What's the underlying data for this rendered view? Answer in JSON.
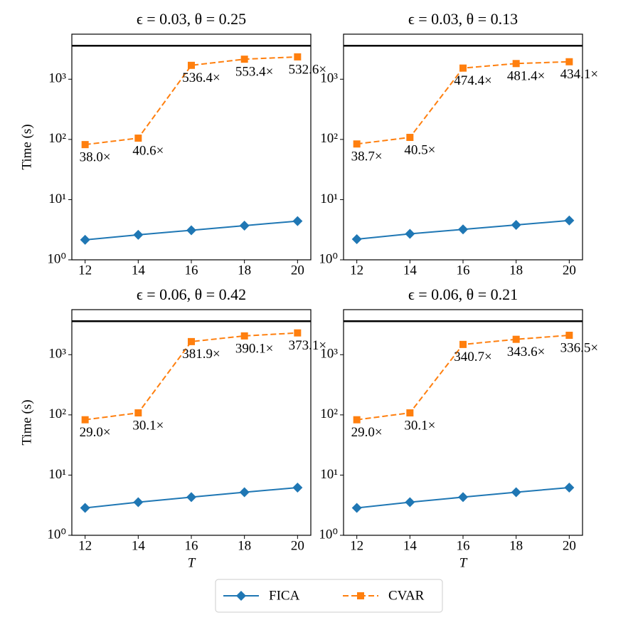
{
  "chart_data": [
    {
      "type": "line",
      "title": "ϵ = 0.03, θ = 0.25",
      "ylabel": "Time (s)",
      "log_y": true,
      "x": [
        12,
        14,
        16,
        18,
        20
      ],
      "xlim": [
        11.5,
        20.5
      ],
      "xticks": [
        12,
        14,
        16,
        18,
        20
      ],
      "ylim": [
        1,
        5600
      ],
      "yticks": [
        {
          "value": 1,
          "label": "10⁰"
        },
        {
          "value": 10,
          "label": "10¹"
        },
        {
          "value": 100,
          "label": "10²"
        },
        {
          "value": 1000,
          "label": "10³"
        }
      ],
      "hline": 3600,
      "series": [
        {
          "name": "FICA",
          "color": "#1f77b4",
          "values": [
            2.15,
            2.6,
            3.1,
            3.7,
            4.4
          ]
        },
        {
          "name": "CVAR",
          "color": "#ff7f0e",
          "values": [
            82,
            105,
            1700,
            2150,
            2350
          ]
        }
      ],
      "annotations": [
        "38.0×",
        "40.6×",
        "536.4×",
        "553.4×",
        "532.6×"
      ]
    },
    {
      "type": "line",
      "title": "ϵ = 0.03, θ = 0.13",
      "log_y": true,
      "x": [
        12,
        14,
        16,
        18,
        20
      ],
      "xlim": [
        11.5,
        20.5
      ],
      "xticks": [
        12,
        14,
        16,
        18,
        20
      ],
      "ylim": [
        1,
        5600
      ],
      "yticks": [
        {
          "value": 1,
          "label": "10⁰"
        },
        {
          "value": 10,
          "label": "10¹"
        },
        {
          "value": 100,
          "label": "10²"
        },
        {
          "value": 1000,
          "label": "10³"
        }
      ],
      "hline": 3600,
      "series": [
        {
          "name": "FICA",
          "color": "#1f77b4",
          "values": [
            2.2,
            2.7,
            3.2,
            3.8,
            4.5
          ]
        },
        {
          "name": "CVAR",
          "color": "#ff7f0e",
          "values": [
            84,
            108,
            1530,
            1820,
            1950
          ]
        }
      ],
      "annotations": [
        "38.7×",
        "40.5×",
        "474.4×",
        "481.4×",
        "434.1×"
      ]
    },
    {
      "type": "line",
      "title": "ϵ = 0.06, θ = 0.42",
      "ylabel": "Time (s)",
      "xlabel": "T",
      "log_y": true,
      "x": [
        12,
        14,
        16,
        18,
        20
      ],
      "xlim": [
        11.5,
        20.5
      ],
      "xticks": [
        12,
        14,
        16,
        18,
        20
      ],
      "ylim": [
        1,
        5600
      ],
      "yticks": [
        {
          "value": 1,
          "label": "10⁰"
        },
        {
          "value": 10,
          "label": "10¹"
        },
        {
          "value": 100,
          "label": "10²"
        },
        {
          "value": 1000,
          "label": "10³"
        }
      ],
      "hline": 3600,
      "series": [
        {
          "name": "FICA",
          "color": "#1f77b4",
          "values": [
            2.85,
            3.55,
            4.3,
            5.2,
            6.2
          ]
        },
        {
          "name": "CVAR",
          "color": "#ff7f0e",
          "values": [
            83,
            108,
            1650,
            2050,
            2300
          ]
        }
      ],
      "annotations": [
        "29.0×",
        "30.1×",
        "381.9×",
        "390.1×",
        "373.1×"
      ]
    },
    {
      "type": "line",
      "title": "ϵ = 0.06, θ = 0.21",
      "xlabel": "T",
      "log_y": true,
      "x": [
        12,
        14,
        16,
        18,
        20
      ],
      "xlim": [
        11.5,
        20.5
      ],
      "xticks": [
        12,
        14,
        16,
        18,
        20
      ],
      "ylim": [
        1,
        5600
      ],
      "yticks": [
        {
          "value": 1,
          "label": "10⁰"
        },
        {
          "value": 10,
          "label": "10¹"
        },
        {
          "value": 100,
          "label": "10²"
        },
        {
          "value": 1000,
          "label": "10³"
        }
      ],
      "hline": 3600,
      "series": [
        {
          "name": "FICA",
          "color": "#1f77b4",
          "values": [
            2.85,
            3.55,
            4.3,
            5.2,
            6.2
          ]
        },
        {
          "name": "CVAR",
          "color": "#ff7f0e",
          "values": [
            83,
            108,
            1480,
            1800,
            2100
          ]
        }
      ],
      "annotations": [
        "29.0×",
        "30.1×",
        "340.7×",
        "343.6×",
        "336.5×"
      ]
    }
  ]
}
